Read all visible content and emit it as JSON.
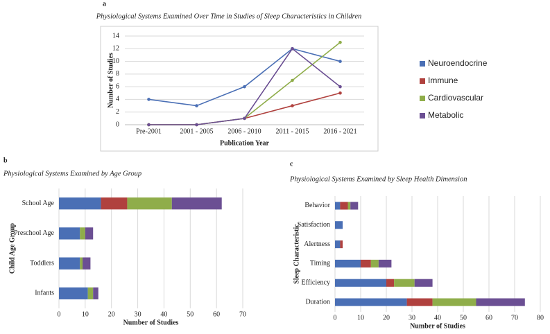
{
  "chart_data": [
    {
      "type": "line",
      "panel": "a",
      "title": "Physiological Systems Examined Over Time in Studies of Sleep Characteristics in Children",
      "x_label": "Publication Year",
      "y_label": "Number of Studies",
      "categories": [
        "Pre-2001",
        "2001 - 2005",
        "2006 - 2010",
        "2011 - 2015",
        "2016 - 2021"
      ],
      "series": [
        {
          "name": "Neuroendocrine",
          "color": "#4a6fb5",
          "values": [
            4,
            3,
            6,
            12,
            10
          ]
        },
        {
          "name": "Immune",
          "color": "#b0413e",
          "values": [
            0,
            0,
            1,
            3,
            5
          ]
        },
        {
          "name": "Cardiovascular",
          "color": "#8fad4a",
          "values": [
            0,
            0,
            1,
            7,
            13
          ]
        },
        {
          "name": "Metabolic",
          "color": "#6b4f93",
          "values": [
            0,
            0,
            1,
            12,
            6
          ]
        }
      ],
      "ylim": [
        0,
        14
      ],
      "yticks": [
        0,
        2,
        4,
        6,
        8,
        10,
        12,
        14
      ],
      "grid": true,
      "legend": "right"
    },
    {
      "type": "bar",
      "horizontal": true,
      "stacked": true,
      "panel": "b",
      "title": "Physiological Systems Examined by Age Group",
      "x_label": "Number of Studies",
      "y_label": "Child Age Group",
      "categories": [
        "School Age",
        "Preschool Age",
        "Toddlers",
        "Infants"
      ],
      "series": [
        {
          "color": "#4a6fb5",
          "values": [
            16,
            8,
            8,
            11
          ]
        },
        {
          "color": "#b0413e",
          "values": [
            10,
            0,
            0,
            0
          ]
        },
        {
          "color": "#8fad4a",
          "values": [
            17,
            2,
            1,
            2
          ]
        },
        {
          "color": "#6b4f93",
          "values": [
            19,
            3,
            3,
            2
          ]
        }
      ],
      "xlim": [
        0,
        70
      ],
      "xticks": [
        0,
        10,
        20,
        30,
        40,
        50,
        60,
        70
      ],
      "grid": true
    },
    {
      "type": "bar",
      "horizontal": true,
      "stacked": true,
      "panel": "c",
      "title": "Physiological Systems Examined by Sleep Health Dimension",
      "x_label": "Number of Studies",
      "y_label": "Sleep Characteristic",
      "categories": [
        "Behavior",
        "Satisfaction",
        "Alertness",
        "Timing",
        "Efficiency",
        "Duration"
      ],
      "series": [
        {
          "color": "#4a6fb5",
          "values": [
            2,
            3,
            2,
            10,
            20,
            28
          ]
        },
        {
          "color": "#b0413e",
          "values": [
            3,
            0,
            1,
            4,
            3,
            10
          ]
        },
        {
          "color": "#8fad4a",
          "values": [
            1,
            0,
            0,
            3,
            8,
            17
          ]
        },
        {
          "color": "#6b4f93",
          "values": [
            3,
            0,
            0,
            5,
            7,
            19
          ]
        }
      ],
      "xlim": [
        0,
        80
      ],
      "xticks": [
        0,
        10,
        20,
        30,
        40,
        50,
        60,
        70,
        80
      ],
      "grid": true
    }
  ]
}
